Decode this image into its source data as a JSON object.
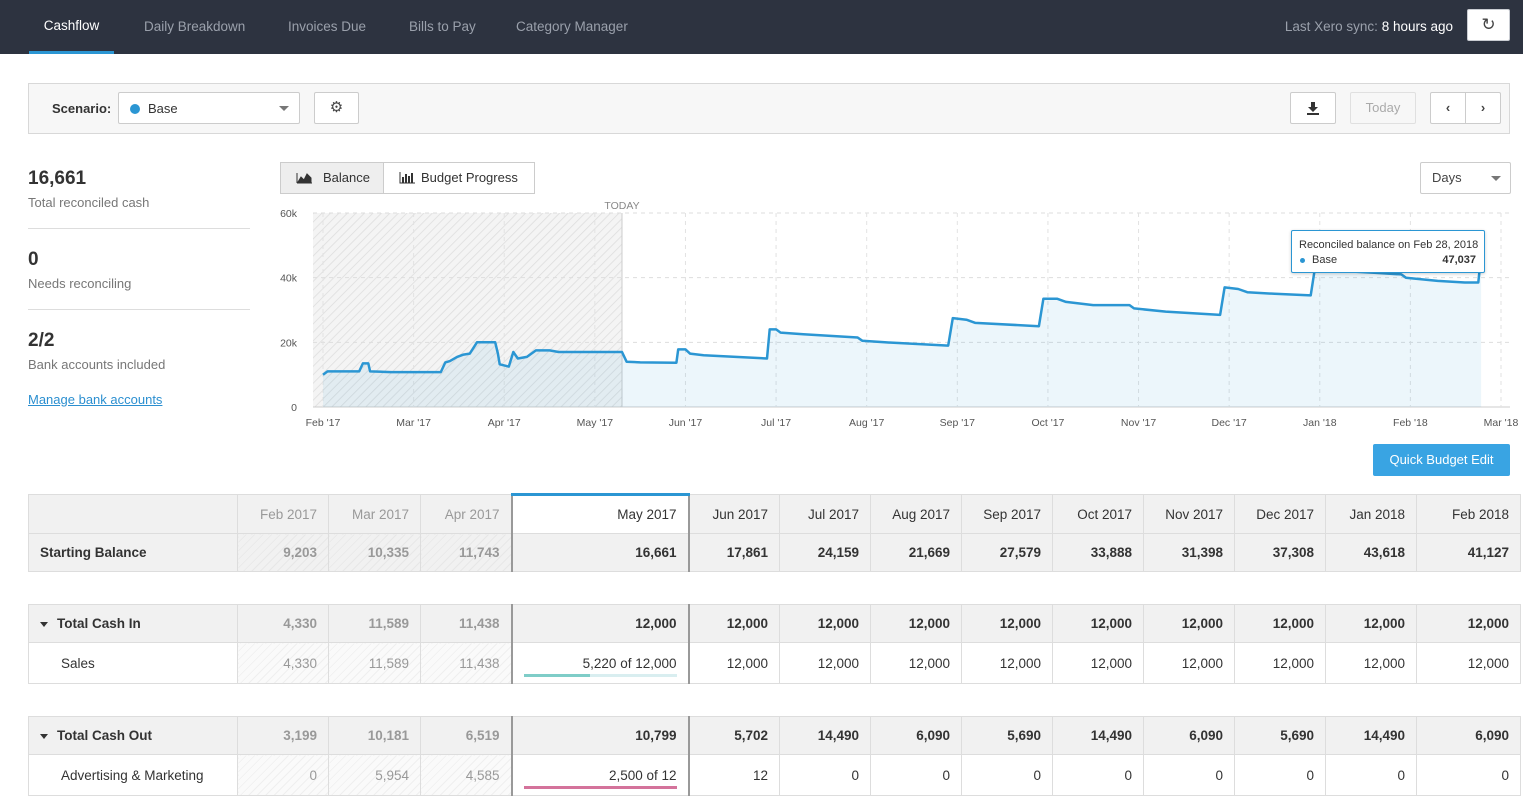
{
  "nav": {
    "tabs": [
      "Cashflow",
      "Daily Breakdown",
      "Invoices Due",
      "Bills to Pay",
      "Category Manager"
    ],
    "sync_label": "Last Xero sync:",
    "sync_value": "8 hours ago",
    "refresh_icon": "refresh-icon"
  },
  "scenario": {
    "label": "Scenario:",
    "value": "Base",
    "color": "#2b96d3",
    "today_label": "Today"
  },
  "stats": [
    {
      "value": "16,661",
      "label": "Total reconciled cash"
    },
    {
      "value": "0",
      "label": "Needs reconciling"
    },
    {
      "value": "2/2",
      "label": "Bank accounts included"
    }
  ],
  "manage_link": "Manage bank accounts",
  "chart_tabs": {
    "balance": "Balance",
    "budget": "Budget Progress"
  },
  "granularity": "Days",
  "quick_budget": "Quick Budget Edit",
  "chart_data": {
    "type": "area",
    "today_label": "TODAY",
    "y_ticks": [
      "60k",
      "40k",
      "20k",
      "0"
    ],
    "ylim": [
      0,
      60000
    ],
    "x_labels": [
      "Feb '17",
      "Mar '17",
      "Apr '17",
      "May '17",
      "Jun '17",
      "Jul '17",
      "Aug '17",
      "Sep '17",
      "Oct '17",
      "Nov '17",
      "Dec '17",
      "Jan '18",
      "Feb '18",
      "Mar '18"
    ],
    "series": [
      {
        "name": "Base",
        "color": "#2b96d3",
        "points": [
          [
            0,
            10000
          ],
          [
            0.05,
            11000
          ],
          [
            0.4,
            11000
          ],
          [
            0.44,
            13500
          ],
          [
            0.5,
            13500
          ],
          [
            0.52,
            11000
          ],
          [
            0.75,
            10800
          ],
          [
            1.0,
            10800
          ],
          [
            1.3,
            10800
          ],
          [
            1.35,
            13800
          ],
          [
            1.4,
            14200
          ],
          [
            1.48,
            15500
          ],
          [
            1.55,
            16200
          ],
          [
            1.62,
            16500
          ],
          [
            1.7,
            20000
          ],
          [
            1.9,
            20000
          ],
          [
            1.93,
            16500
          ],
          [
            1.95,
            13200
          ],
          [
            2.05,
            12500
          ],
          [
            2.1,
            17000
          ],
          [
            2.15,
            15000
          ],
          [
            2.25,
            15500
          ],
          [
            2.35,
            17500
          ],
          [
            2.5,
            17500
          ],
          [
            2.6,
            17000
          ],
          [
            3.0,
            17000
          ],
          [
            3.3,
            17000
          ],
          [
            3.35,
            14000
          ],
          [
            3.5,
            13800
          ],
          [
            3.9,
            13700
          ],
          [
            3.92,
            17800
          ],
          [
            4.0,
            17800
          ],
          [
            4.05,
            16500
          ],
          [
            4.2,
            16000
          ],
          [
            4.9,
            15000
          ],
          [
            4.93,
            24000
          ],
          [
            5.0,
            24000
          ],
          [
            5.05,
            23000
          ],
          [
            5.3,
            22500
          ],
          [
            5.9,
            21500
          ],
          [
            5.95,
            20500
          ],
          [
            6.2,
            20000
          ],
          [
            6.9,
            19000
          ],
          [
            6.95,
            27500
          ],
          [
            7.1,
            27000
          ],
          [
            7.2,
            26000
          ],
          [
            7.9,
            25000
          ],
          [
            7.95,
            33500
          ],
          [
            8.1,
            33500
          ],
          [
            8.2,
            32500
          ],
          [
            8.5,
            31500
          ],
          [
            8.9,
            31500
          ],
          [
            8.95,
            30500
          ],
          [
            9.3,
            29500
          ],
          [
            9.9,
            28500
          ],
          [
            9.95,
            37000
          ],
          [
            10.1,
            36500
          ],
          [
            10.2,
            35500
          ],
          [
            10.5,
            35000
          ],
          [
            10.9,
            34500
          ],
          [
            10.95,
            43500
          ],
          [
            11.1,
            43000
          ],
          [
            11.3,
            42000
          ],
          [
            11.6,
            41500
          ],
          [
            11.9,
            41000
          ],
          [
            11.95,
            40000
          ],
          [
            12.3,
            39000
          ],
          [
            12.6,
            38500
          ],
          [
            12.75,
            38500
          ],
          [
            12.78,
            47000
          ]
        ]
      }
    ],
    "tooltip": {
      "title": "Reconciled balance on Feb 28, 2018",
      "series": "Base",
      "value": "47,037"
    }
  },
  "table": {
    "months": [
      "Feb 2017",
      "Mar 2017",
      "Apr 2017",
      "May 2017",
      "Jun 2017",
      "Jul 2017",
      "Aug 2017",
      "Sep 2017",
      "Oct 2017",
      "Nov 2017",
      "Dec 2017",
      "Jan 2018",
      "Feb 2018"
    ],
    "starting_balance": {
      "label": "Starting Balance",
      "values": [
        "9,203",
        "10,335",
        "11,743",
        "16,661",
        "17,861",
        "24,159",
        "21,669",
        "27,579",
        "33,888",
        "31,398",
        "37,308",
        "43,618",
        "41,127"
      ]
    },
    "cash_in": {
      "label": "Total Cash In",
      "values": [
        "4,330",
        "11,589",
        "11,438",
        "12,000",
        "12,000",
        "12,000",
        "12,000",
        "12,000",
        "12,000",
        "12,000",
        "12,000",
        "12,000",
        "12,000"
      ]
    },
    "sales": {
      "label": "Sales",
      "values": [
        "4,330",
        "11,589",
        "11,438",
        "5,220 of 12,000",
        "12,000",
        "12,000",
        "12,000",
        "12,000",
        "12,000",
        "12,000",
        "12,000",
        "12,000",
        "12,000"
      ],
      "progress": 0.435,
      "progress_color": "#7fcdc8"
    },
    "cash_out": {
      "label": "Total Cash Out",
      "values": [
        "3,199",
        "10,181",
        "6,519",
        "10,799",
        "5,702",
        "14,490",
        "6,090",
        "5,690",
        "14,490",
        "6,090",
        "5,690",
        "14,490",
        "6,090"
      ]
    },
    "advertising": {
      "label": "Advertising & Marketing",
      "values": [
        "0",
        "5,954",
        "4,585",
        "2,500 of 12",
        "12",
        "0",
        "0",
        "0",
        "0",
        "0",
        "0",
        "0",
        "0"
      ],
      "progress": 1.0,
      "progress_color": "#d4739b"
    }
  }
}
